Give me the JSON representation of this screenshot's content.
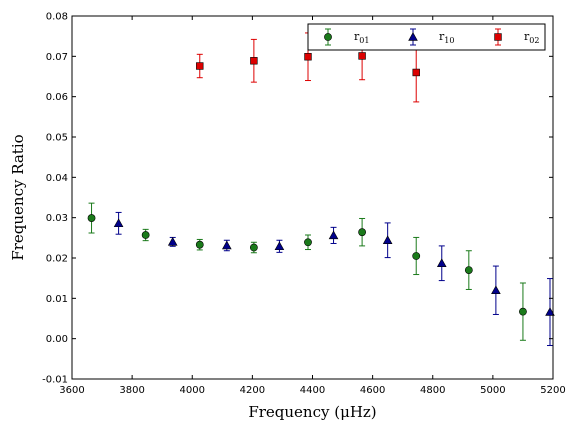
{
  "chart_data": {
    "type": "scatter",
    "title": "",
    "xlabel": "Frequency  (μHz)",
    "ylabel": "Frequency Ratio",
    "xlim": [
      3600,
      5200
    ],
    "ylim": [
      -0.01,
      0.08
    ],
    "xticks": [
      3600,
      3800,
      4000,
      4200,
      4400,
      4600,
      4800,
      5000,
      5200
    ],
    "xtick_labels": [
      "3600",
      "3800",
      "4000",
      "4200",
      "4400",
      "4600",
      "4800",
      "5000",
      "5200"
    ],
    "yticks": [
      -0.01,
      0.0,
      0.01,
      0.02,
      0.03,
      0.04,
      0.05,
      0.06,
      0.07,
      0.08
    ],
    "ytick_labels": [
      "-0.01",
      "0.00",
      "0.01",
      "0.02",
      "0.03",
      "0.04",
      "0.05",
      "0.06",
      "0.07",
      "0.08"
    ],
    "grid": false,
    "legend_position": "top-right",
    "series": [
      {
        "name": "r01",
        "name_base": "r",
        "name_sub": "01",
        "color": "#1a7a1a",
        "marker": "circle",
        "points": [
          {
            "x": 3665,
            "y": 0.0299,
            "err": 0.0037
          },
          {
            "x": 3845,
            "y": 0.0257,
            "err": 0.0014
          },
          {
            "x": 4025,
            "y": 0.0233,
            "err": 0.0013
          },
          {
            "x": 4205,
            "y": 0.0226,
            "err": 0.0013
          },
          {
            "x": 4385,
            "y": 0.0239,
            "err": 0.0018
          },
          {
            "x": 4565,
            "y": 0.0264,
            "err": 0.0034
          },
          {
            "x": 4745,
            "y": 0.0205,
            "err": 0.0046
          },
          {
            "x": 4920,
            "y": 0.017,
            "err": 0.0048
          },
          {
            "x": 5100,
            "y": 0.0067,
            "err": 0.0071
          }
        ]
      },
      {
        "name": "r10",
        "name_base": "r",
        "name_sub": "10",
        "color": "#00008b",
        "marker": "triangle",
        "points": [
          {
            "x": 3755,
            "y": 0.0286,
            "err": 0.0027
          },
          {
            "x": 3935,
            "y": 0.024,
            "err": 0.0011
          },
          {
            "x": 4115,
            "y": 0.0231,
            "err": 0.0013
          },
          {
            "x": 4290,
            "y": 0.0229,
            "err": 0.0015
          },
          {
            "x": 4470,
            "y": 0.0256,
            "err": 0.002
          },
          {
            "x": 4650,
            "y": 0.0244,
            "err": 0.0043
          },
          {
            "x": 4830,
            "y": 0.0187,
            "err": 0.0043
          },
          {
            "x": 5010,
            "y": 0.012,
            "err": 0.006
          },
          {
            "x": 5190,
            "y": 0.0066,
            "err": 0.0083
          }
        ]
      },
      {
        "name": "r02",
        "name_base": "r",
        "name_sub": "02",
        "color": "#dd0000",
        "marker": "square",
        "points": [
          {
            "x": 4025,
            "y": 0.0676,
            "err": 0.0029
          },
          {
            "x": 4205,
            "y": 0.0689,
            "err": 0.0053
          },
          {
            "x": 4385,
            "y": 0.0699,
            "err": 0.0059
          },
          {
            "x": 4565,
            "y": 0.0701,
            "err": 0.0059
          },
          {
            "x": 4745,
            "y": 0.066,
            "err": 0.0073
          }
        ]
      }
    ]
  }
}
